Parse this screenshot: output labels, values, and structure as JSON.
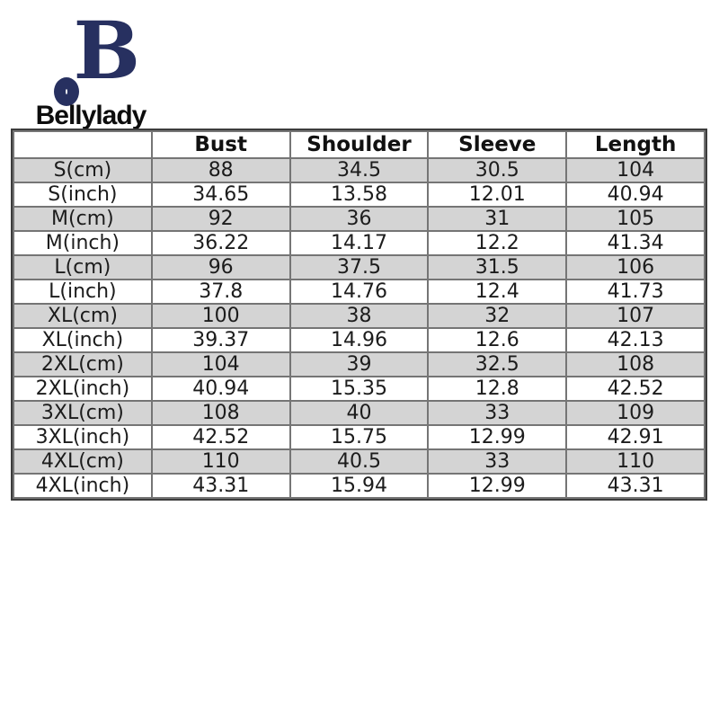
{
  "brand": {
    "name": "Bellylady",
    "logo_monogram": "BO",
    "logo_color": "#273060"
  },
  "size_chart": {
    "columns": [
      "",
      "Bust",
      "Shoulder",
      "Sleeve",
      "Length"
    ],
    "rows": [
      {
        "label": "S(cm)",
        "values": [
          "88",
          "34.5",
          "30.5",
          "104"
        ]
      },
      {
        "label": "S(inch)",
        "values": [
          "34.65",
          "13.58",
          "12.01",
          "40.94"
        ]
      },
      {
        "label": "M(cm)",
        "values": [
          "92",
          "36",
          "31",
          "105"
        ]
      },
      {
        "label": "M(inch)",
        "values": [
          "36.22",
          "14.17",
          "12.2",
          "41.34"
        ]
      },
      {
        "label": "L(cm)",
        "values": [
          "96",
          "37.5",
          "31.5",
          "106"
        ]
      },
      {
        "label": "L(inch)",
        "values": [
          "37.8",
          "14.76",
          "12.4",
          "41.73"
        ]
      },
      {
        "label": "XL(cm)",
        "values": [
          "100",
          "38",
          "32",
          "107"
        ]
      },
      {
        "label": "XL(inch)",
        "values": [
          "39.37",
          "14.96",
          "12.6",
          "42.13"
        ]
      },
      {
        "label": "2XL(cm)",
        "values": [
          "104",
          "39",
          "32.5",
          "108"
        ]
      },
      {
        "label": "2XL(inch)",
        "values": [
          "40.94",
          "15.35",
          "12.8",
          "42.52"
        ]
      },
      {
        "label": "3XL(cm)",
        "values": [
          "108",
          "40",
          "33",
          "109"
        ]
      },
      {
        "label": "3XL(inch)",
        "values": [
          "42.52",
          "15.75",
          "12.99",
          "42.91"
        ]
      },
      {
        "label": "4XL(cm)",
        "values": [
          "110",
          "40.5",
          "33",
          "110"
        ]
      },
      {
        "label": "4XL(inch)",
        "values": [
          "43.31",
          "15.94",
          "12.99",
          "43.31"
        ]
      }
    ],
    "colors": {
      "shaded_row": "#d4d4d4",
      "plain_row": "#ffffff",
      "grid_line": "#757575",
      "outer_border": "#3c3c3c",
      "text": "#1c1c1c"
    }
  },
  "chart_data": {
    "type": "table",
    "columns": [
      "",
      "Bust",
      "Shoulder",
      "Sleeve",
      "Length"
    ],
    "rows": [
      [
        "S(cm)",
        88,
        34.5,
        30.5,
        104
      ],
      [
        "S(inch)",
        34.65,
        13.58,
        12.01,
        40.94
      ],
      [
        "M(cm)",
        92,
        36,
        31,
        105
      ],
      [
        "M(inch)",
        36.22,
        14.17,
        12.2,
        41.34
      ],
      [
        "L(cm)",
        96,
        37.5,
        31.5,
        106
      ],
      [
        "L(inch)",
        37.8,
        14.76,
        12.4,
        41.73
      ],
      [
        "XL(cm)",
        100,
        38,
        32,
        107
      ],
      [
        "XL(inch)",
        39.37,
        14.96,
        12.6,
        42.13
      ],
      [
        "2XL(cm)",
        104,
        39,
        32.5,
        108
      ],
      [
        "2XL(inch)",
        40.94,
        15.35,
        12.8,
        42.52
      ],
      [
        "3XL(cm)",
        108,
        40,
        33,
        109
      ],
      [
        "3XL(inch)",
        42.52,
        15.75,
        12.99,
        42.91
      ],
      [
        "4XL(cm)",
        110,
        40.5,
        33,
        110
      ],
      [
        "4XL(inch)",
        43.31,
        15.94,
        12.99,
        43.31
      ]
    ]
  }
}
